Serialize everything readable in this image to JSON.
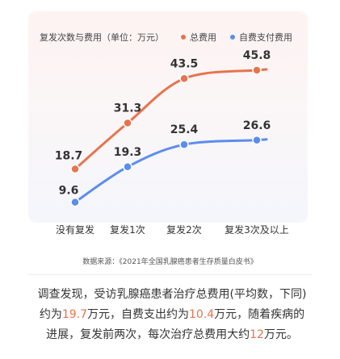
{
  "chart_data": {
    "type": "line",
    "title": "复发次数与费用（单位：万元）",
    "categories": [
      "没有复发",
      "复发1次",
      "复发2次",
      "复发3次及以上"
    ],
    "ylim": [
      0,
      50
    ],
    "legend_position": "top-right",
    "series": [
      {
        "name": "总费用",
        "color": "#e8734d",
        "values": [
          18.7,
          31.3,
          43.5,
          45.8
        ]
      },
      {
        "name": "自费支付费用",
        "color": "#5b8def",
        "values": [
          9.6,
          19.3,
          25.4,
          26.6
        ]
      }
    ]
  },
  "source_text": "数据来源：《2021年全国乳腺癌患者生存质量白皮书》",
  "summary": {
    "line1": "调查发现，受访乳腺癌患者治疗总费用(平均数，下同)",
    "line2_pre": "约为",
    "line2_v1": "19.7",
    "line2_mid": "万元，自费支出约为",
    "line2_v2": "10.4",
    "line2_post": "万元，随着疾病的",
    "line3_pre": "进展，复发前两次，每次治疗总费用大约",
    "line3_v": "12",
    "line3_post": "万元。"
  }
}
